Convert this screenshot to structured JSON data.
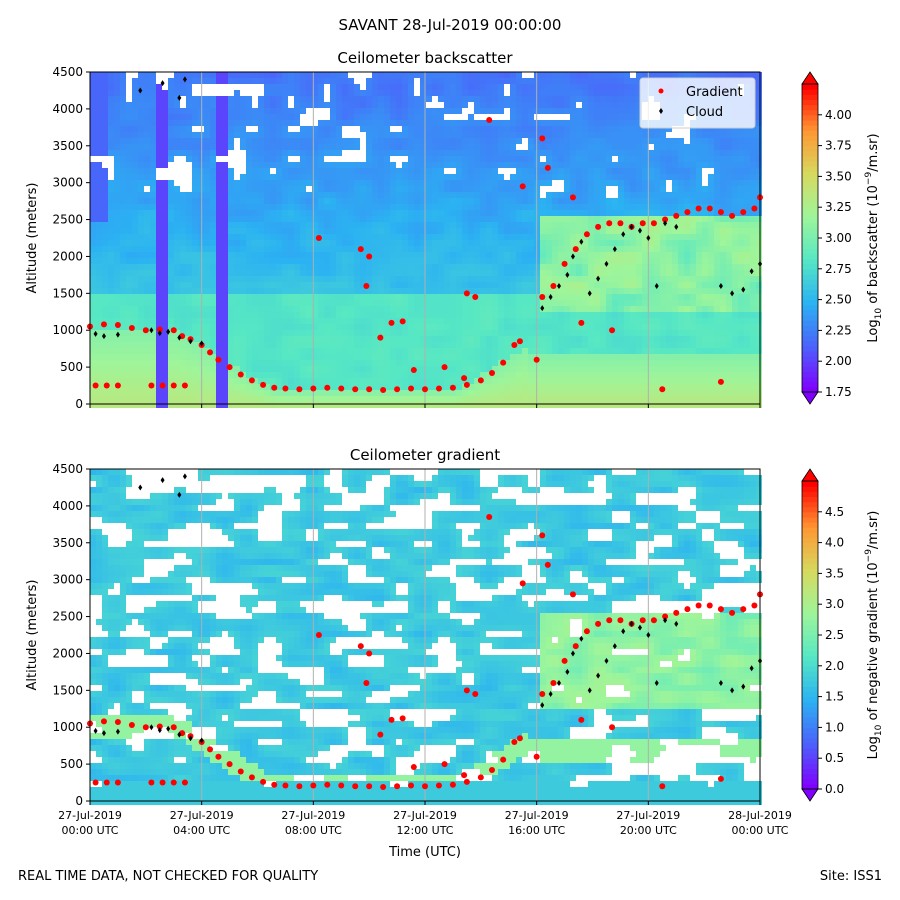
{
  "suptitle": "SAVANT 28-Jul-2019 00:00:00",
  "footer": {
    "left": "REAL TIME DATA, NOT CHECKED FOR QUALITY",
    "right": "Site: ISS1"
  },
  "colors": {
    "gradient_marker": "#ff0000",
    "cloud_marker": "#000000",
    "colormap": [
      "#8000ff",
      "#4b62fb",
      "#2bb2f2",
      "#56e7c4",
      "#9ef59a",
      "#d7d95f",
      "#ff9532",
      "#ff0000"
    ]
  },
  "chart_data": [
    {
      "type": "heatmap",
      "title": "Ceilometer backscatter",
      "ylabel": "Altitude (meters)",
      "xlabel": "",
      "xlim_hours": [
        0,
        24
      ],
      "ylim": [
        0,
        4500
      ],
      "yticks": [
        "0",
        "500",
        "1000",
        "1500",
        "2000",
        "2500",
        "3000",
        "3500",
        "4000",
        "4500"
      ],
      "xticks_hours": [
        0,
        4,
        8,
        12,
        16,
        20,
        24
      ],
      "grid": "vertical lines at x ticks",
      "legend": {
        "placement": "top-right",
        "entries": [
          {
            "label": "Gradient",
            "color": "#ff0000",
            "marker": "dot"
          },
          {
            "label": "Cloud",
            "color": "#000000",
            "marker": "diamond"
          }
        ]
      },
      "colorbar": {
        "label_parts": [
          "Log",
          "10",
          " of backscatter (10",
          "−9",
          "/m.sr)"
        ],
        "range": [
          1.75,
          4.25
        ],
        "ticks": [
          "1.75",
          "2.00",
          "2.25",
          "2.50",
          "2.75",
          "3.00",
          "3.25",
          "3.50",
          "3.75",
          "4.00"
        ],
        "extend": "both"
      },
      "series": [
        {
          "name": "Gradient",
          "points": [
            [
              0,
              1050
            ],
            [
              0.5,
              1080
            ],
            [
              1,
              1070
            ],
            [
              1.5,
              1030
            ],
            [
              2,
              1000
            ],
            [
              2.5,
              1010
            ],
            [
              3,
              1000
            ],
            [
              3.3,
              920
            ],
            [
              3.6,
              880
            ],
            [
              4,
              800
            ],
            [
              4.3,
              700
            ],
            [
              4.6,
              600
            ],
            [
              5,
              500
            ],
            [
              5.4,
              400
            ],
            [
              5.8,
              320
            ],
            [
              6.2,
              260
            ],
            [
              6.6,
              220
            ],
            [
              7,
              210
            ],
            [
              7.5,
              200
            ],
            [
              8,
              210
            ],
            [
              8.5,
              220
            ],
            [
              9,
              210
            ],
            [
              9.5,
              200
            ],
            [
              10,
              200
            ],
            [
              10.5,
              190
            ],
            [
              11,
              200
            ],
            [
              11.5,
              210
            ],
            [
              12,
              200
            ],
            [
              12.5,
              210
            ],
            [
              13,
              220
            ],
            [
              13.5,
              260
            ],
            [
              14,
              320
            ],
            [
              14.4,
              420
            ],
            [
              14.8,
              560
            ],
            [
              15.2,
              800
            ],
            [
              2.2,
              250
            ],
            [
              2.6,
              250
            ],
            [
              3,
              250
            ],
            [
              3.4,
              250
            ],
            [
              0.2,
              250
            ],
            [
              0.6,
              250
            ],
            [
              1,
              250
            ],
            [
              8.2,
              2250
            ],
            [
              9.7,
              2100
            ],
            [
              10,
              2000
            ],
            [
              9.9,
              1600
            ],
            [
              10.8,
              1100
            ],
            [
              11.2,
              1120
            ],
            [
              10.4,
              900
            ],
            [
              11.6,
              460
            ],
            [
              13.5,
              1500
            ],
            [
              13.8,
              1450
            ],
            [
              12.7,
              500
            ],
            [
              13.4,
              350
            ],
            [
              16.2,
              1450
            ],
            [
              16.6,
              1600
            ],
            [
              17,
              1900
            ],
            [
              17.4,
              2100
            ],
            [
              17.8,
              2300
            ],
            [
              18.2,
              2400
            ],
            [
              18.6,
              2450
            ],
            [
              19,
              2450
            ],
            [
              19.4,
              2400
            ],
            [
              19.8,
              2450
            ],
            [
              20.2,
              2450
            ],
            [
              20.6,
              2500
            ],
            [
              21,
              2550
            ],
            [
              21.4,
              2600
            ],
            [
              21.8,
              2650
            ],
            [
              22.2,
              2650
            ],
            [
              22.6,
              2600
            ],
            [
              23,
              2550
            ],
            [
              23.4,
              2600
            ],
            [
              23.8,
              2650
            ],
            [
              14.3,
              3850
            ],
            [
              16.2,
              3600
            ],
            [
              16.4,
              3200
            ],
            [
              15.5,
              2950
            ],
            [
              17.3,
              2800
            ],
            [
              17.6,
              1100
            ],
            [
              18.7,
              1000
            ],
            [
              16,
              600
            ],
            [
              15.4,
              850
            ],
            [
              20.5,
              200
            ],
            [
              22.6,
              300
            ],
            [
              24,
              2800
            ]
          ]
        },
        {
          "name": "Cloud",
          "points": [
            [
              0.2,
              950
            ],
            [
              0.5,
              920
            ],
            [
              1,
              940
            ],
            [
              2.2,
              1000
            ],
            [
              2.5,
              960
            ],
            [
              2.8,
              980
            ],
            [
              3.2,
              900
            ],
            [
              3.6,
              850
            ],
            [
              4,
              820
            ],
            [
              1.8,
              4250
            ],
            [
              2.6,
              4350
            ],
            [
              3.2,
              4150
            ],
            [
              3.4,
              4400
            ],
            [
              16.2,
              1300
            ],
            [
              16.5,
              1450
            ],
            [
              16.8,
              1600
            ],
            [
              17.1,
              1750
            ],
            [
              17.3,
              2000
            ],
            [
              17.6,
              2200
            ],
            [
              17.9,
              1500
            ],
            [
              18.2,
              1700
            ],
            [
              18.5,
              1900
            ],
            [
              18.8,
              2100
            ],
            [
              19.1,
              2300
            ],
            [
              19.4,
              2400
            ],
            [
              19.7,
              2350
            ],
            [
              20,
              2250
            ],
            [
              20.3,
              1600
            ],
            [
              20.6,
              2450
            ],
            [
              21,
              2400
            ],
            [
              22.6,
              1600
            ],
            [
              23,
              1500
            ],
            [
              23.4,
              1550
            ],
            [
              23.7,
              1800
            ],
            [
              24,
              1900
            ]
          ]
        }
      ]
    },
    {
      "type": "heatmap",
      "title": "Ceilometer gradient",
      "ylabel": "Altitude (meters)",
      "xlabel": "Time (UTC)",
      "xlim_hours": [
        0,
        24
      ],
      "ylim": [
        0,
        4500
      ],
      "yticks": [
        "0",
        "500",
        "1000",
        "1500",
        "2000",
        "2500",
        "3000",
        "3500",
        "4000",
        "4500"
      ],
      "xticks": [
        {
          "hours": 0,
          "date": "27-Jul-2019",
          "time": "00:00 UTC"
        },
        {
          "hours": 4,
          "date": "27-Jul-2019",
          "time": "04:00 UTC"
        },
        {
          "hours": 8,
          "date": "27-Jul-2019",
          "time": "08:00 UTC"
        },
        {
          "hours": 12,
          "date": "27-Jul-2019",
          "time": "12:00 UTC"
        },
        {
          "hours": 16,
          "date": "27-Jul-2019",
          "time": "16:00 UTC"
        },
        {
          "hours": 20,
          "date": "27-Jul-2019",
          "time": "20:00 UTC"
        },
        {
          "hours": 24,
          "date": "28-Jul-2019",
          "time": "00:00 UTC"
        }
      ],
      "grid": "vertical lines at x ticks",
      "colorbar": {
        "label_parts": [
          "Log",
          "10",
          " of negative gradient (10",
          "−9",
          "/m.sr)"
        ],
        "range": [
          0.0,
          5.0
        ],
        "ticks": [
          "0.0",
          "0.5",
          "1.0",
          "1.5",
          "2.0",
          "2.5",
          "3.0",
          "3.5",
          "4.0",
          "4.5"
        ],
        "extend": "both"
      },
      "series": [
        {
          "name": "Gradient",
          "points_ref": "same as backscatter panel"
        },
        {
          "name": "Cloud",
          "points_ref": "same as backscatter panel"
        }
      ]
    }
  ]
}
